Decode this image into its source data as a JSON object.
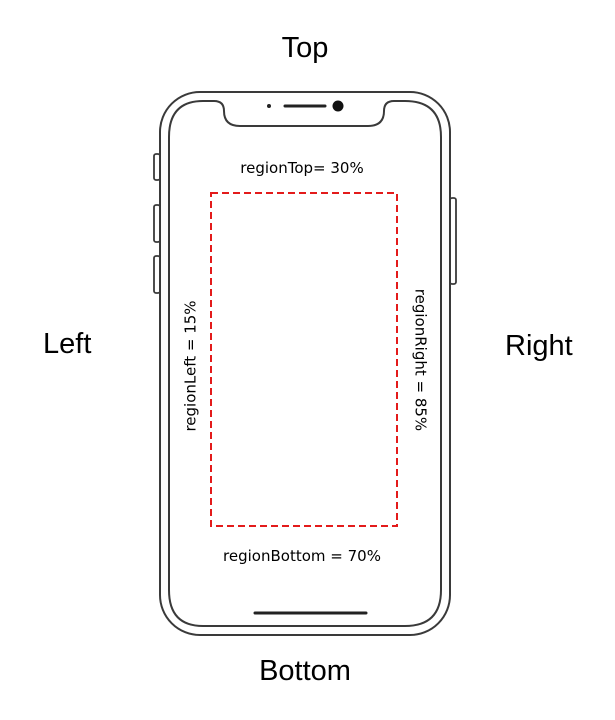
{
  "sides": {
    "top": "Top",
    "bottom": "Bottom",
    "left": "Left",
    "right": "Right"
  },
  "region": {
    "top": "regionTop= 30%",
    "bottom": "regionBottom = 70%",
    "left": "regionLeft = 15%",
    "right": "regionRight = 85%"
  },
  "colors": {
    "outline": "#3a3a3a",
    "region_border": "#e31b1b"
  }
}
